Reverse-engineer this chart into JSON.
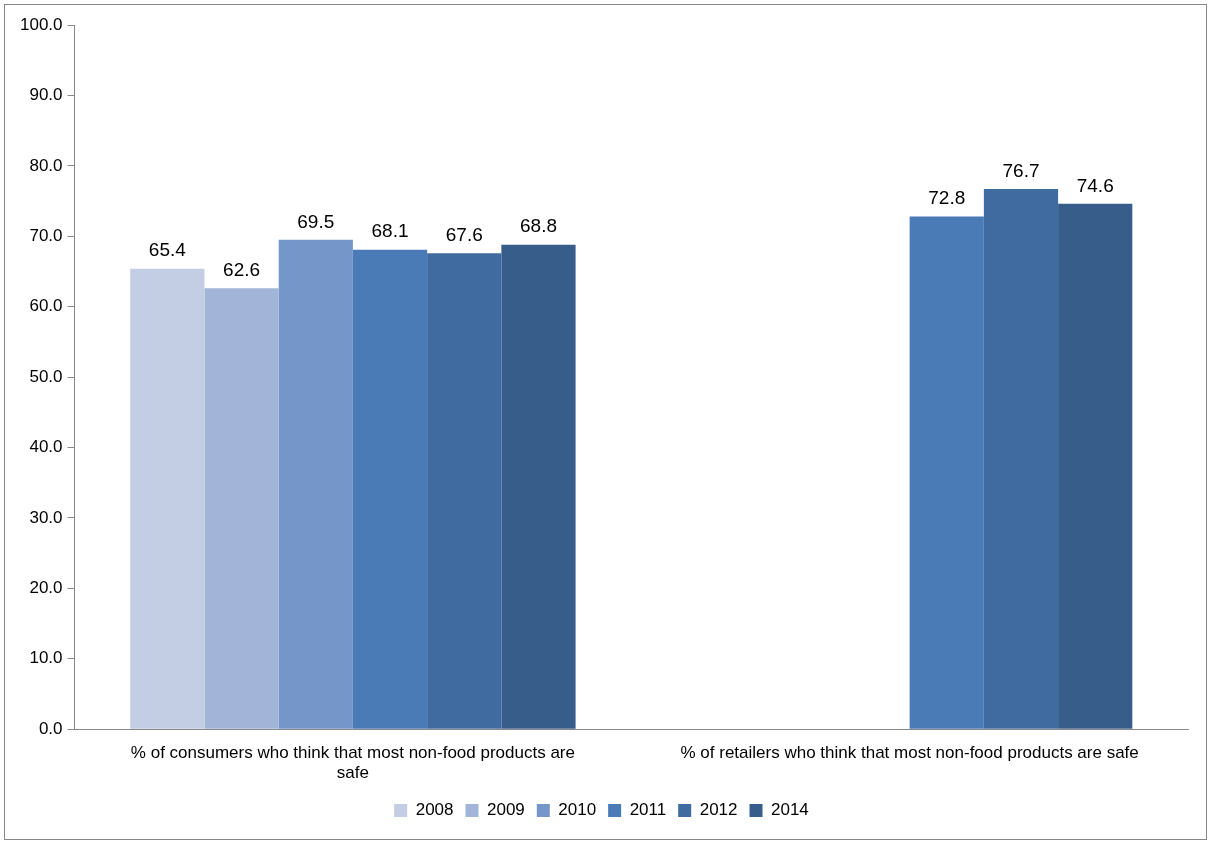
{
  "chart_data": {
    "type": "bar",
    "categories": [
      "% of consumers who think that most non-food products are safe",
      "% of retailers who think that most non-food products are safe"
    ],
    "series": [
      {
        "name": "2008",
        "color": "#c3cde3",
        "values": [
          65.4,
          null
        ]
      },
      {
        "name": "2009",
        "color": "#a2b4d7",
        "values": [
          62.6,
          null
        ]
      },
      {
        "name": "2010",
        "color": "#7596c8",
        "values": [
          69.5,
          null
        ]
      },
      {
        "name": "2011",
        "color": "#4a7bb7",
        "values": [
          68.1,
          72.8
        ]
      },
      {
        "name": "2012",
        "color": "#3f6ba1",
        "values": [
          67.6,
          76.7
        ]
      },
      {
        "name": "2014",
        "color": "#375d8b",
        "values": [
          68.8,
          74.6
        ]
      }
    ],
    "ylim": [
      0,
      100
    ],
    "yticks": [
      {
        "value": 0,
        "label": "0.0"
      },
      {
        "value": 10,
        "label": "10.0"
      },
      {
        "value": 20,
        "label": "20.0"
      },
      {
        "value": 30,
        "label": "30.0"
      },
      {
        "value": 40,
        "label": "40.0"
      },
      {
        "value": 50,
        "label": "50.0"
      },
      {
        "value": 60,
        "label": "60.0"
      },
      {
        "value": 70,
        "label": "70.0"
      },
      {
        "value": 80,
        "label": "80.0"
      },
      {
        "value": 90,
        "label": "90.0"
      },
      {
        "value": 100,
        "label": "100.0"
      }
    ],
    "data_labels": true,
    "grid": false,
    "legend": "bottom"
  }
}
